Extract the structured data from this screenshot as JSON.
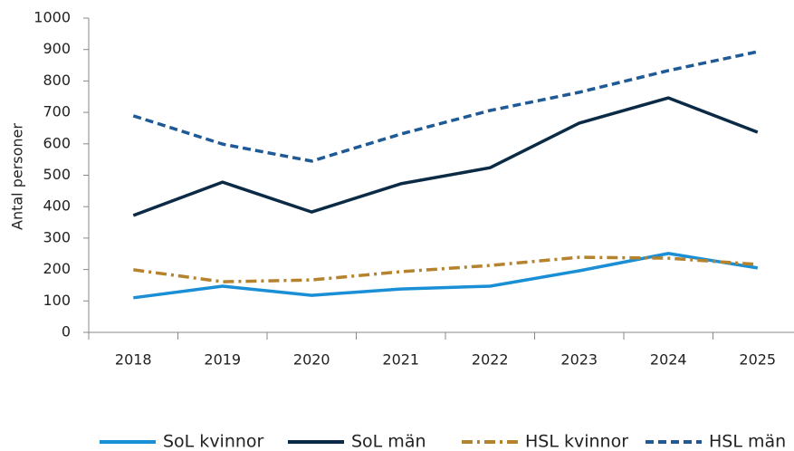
{
  "chart_data": {
    "type": "line",
    "y_label": "Antal personer",
    "categories": [
      "2018",
      "2019",
      "2020",
      "2021",
      "2022",
      "2023",
      "2024",
      "2025"
    ],
    "series": [
      {
        "name": "SoL kvinnor",
        "color": "#1a8fd6",
        "linestyle": "solid",
        "values": [
          110,
          147,
          118,
          138,
          147,
          196,
          251,
          205
        ]
      },
      {
        "name": "SoL män",
        "color": "#0b2a45",
        "linestyle": "solid",
        "values": [
          372,
          478,
          383,
          473,
          524,
          666,
          746,
          637
        ]
      },
      {
        "name": "HSL kvinnor",
        "color": "#b5822e",
        "linestyle": "dashdot",
        "values": [
          199,
          161,
          167,
          193,
          213,
          239,
          236,
          216
        ]
      },
      {
        "name": "HSL män",
        "color": "#1f5a96",
        "linestyle": "dashed",
        "values": [
          689,
          599,
          545,
          631,
          706,
          764,
          833,
          893
        ]
      }
    ],
    "ylim": [
      0,
      1000
    ],
    "yticks": [
      0,
      100,
      200,
      300,
      400,
      500,
      600,
      700,
      800,
      900,
      1000
    ],
    "grid": false,
    "legend": "bottom"
  }
}
